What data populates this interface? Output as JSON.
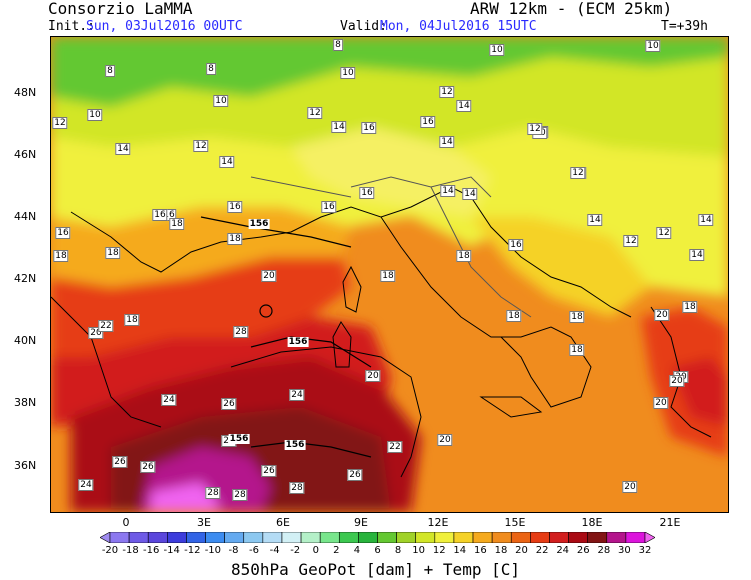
{
  "header": {
    "org": "Consorzio LaMMA",
    "model": "ARW 12km - (ECM 25km)",
    "init_label": "Init.:",
    "init_value": "Sun, 03Jul2016 00UTC",
    "valid_label": "Valid:",
    "valid_value": "Mon, 04Jul2016 15UTC",
    "lead": "T=+39h"
  },
  "map": {
    "lat_labels": [
      "48N",
      "46N",
      "44N",
      "42N",
      "40N",
      "38N",
      "36N"
    ],
    "lon_labels": [
      "0",
      "3E",
      "6E",
      "9E",
      "12E",
      "15E",
      "18E",
      "21E"
    ],
    "temperature_labels": [
      "8",
      "8",
      "8",
      "10",
      "10",
      "10",
      "10",
      "10",
      "12",
      "12",
      "12",
      "12",
      "12",
      "12",
      "14",
      "14",
      "14",
      "14",
      "14",
      "14",
      "14",
      "14",
      "16",
      "16",
      "16",
      "16",
      "16",
      "16",
      "16",
      "16",
      "18",
      "18",
      "18",
      "18",
      "18",
      "18",
      "18",
      "18",
      "18",
      "20",
      "20",
      "20",
      "20",
      "20",
      "20",
      "20",
      "22",
      "22",
      "24",
      "24",
      "24",
      "26",
      "26",
      "26",
      "26",
      "28",
      "28",
      "28",
      "28",
      "28",
      "26",
      "16",
      "12",
      "12",
      "14",
      "12",
      "10",
      "12",
      "18",
      "20",
      "20",
      "18",
      "14"
    ],
    "geopotential_labels": [
      "156",
      "156",
      "156",
      "156"
    ]
  },
  "colorbar": {
    "ticks": [
      "-20",
      "-18",
      "-16",
      "-14",
      "-12",
      "-10",
      "-8",
      "-6",
      "-4",
      "-2",
      "0",
      "2",
      "4",
      "6",
      "8",
      "10",
      "12",
      "14",
      "16",
      "18",
      "20",
      "22",
      "24",
      "26",
      "28",
      "30",
      "32"
    ],
    "colors": [
      "#a08cf0",
      "#8c78f0",
      "#6e5ae6",
      "#5a46dc",
      "#3c3cdc",
      "#3264e6",
      "#3c8cf0",
      "#64aaf0",
      "#8cc8f0",
      "#b4dcf5",
      "#d2f0f5",
      "#b4f0c8",
      "#78e68c",
      "#3cc850",
      "#28b43c",
      "#64c832",
      "#a0d228",
      "#d2e628",
      "#f0f03c",
      "#f5d228",
      "#f5aa1e",
      "#f08c1e",
      "#eb6414",
      "#e63c14",
      "#d21e1e",
      "#aa0a14",
      "#821414",
      "#b4148c",
      "#dc14dc",
      "#f064f0"
    ],
    "title": "850hPa GeoPot [dam] + Temp [C]"
  }
}
